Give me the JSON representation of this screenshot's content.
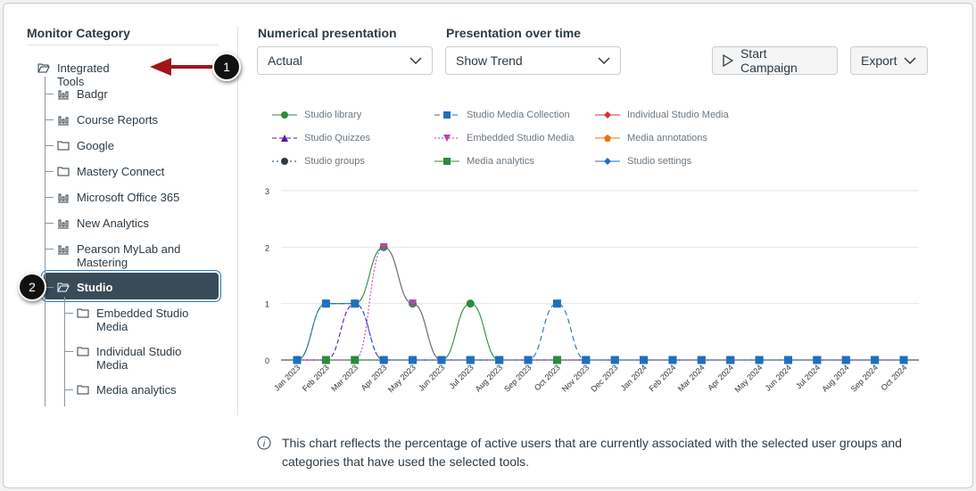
{
  "sidebar": {
    "title": "Monitor Category",
    "root": {
      "label": "Integrated Tools",
      "icon": "folder-open-icon"
    },
    "items": [
      {
        "label": "Badgr",
        "icon": "bar-chart-icon"
      },
      {
        "label": "Course Reports",
        "icon": "bar-chart-icon"
      },
      {
        "label": "Google",
        "icon": "folder-icon"
      },
      {
        "label": "Mastery Connect",
        "icon": "folder-icon"
      },
      {
        "label": "Microsoft Office 365",
        "icon": "bar-chart-icon"
      },
      {
        "label": "New Analytics",
        "icon": "bar-chart-icon"
      },
      {
        "label": "Pearson MyLab and Mastering",
        "icon": "bar-chart-icon"
      },
      {
        "label": "Studio",
        "icon": "folder-open-icon",
        "selected": true
      }
    ],
    "children": [
      {
        "label": "Embedded Studio Media",
        "icon": "folder-icon"
      },
      {
        "label": "Individual Studio Media",
        "icon": "folder-icon"
      },
      {
        "label": "Media analytics",
        "icon": "folder-icon"
      }
    ]
  },
  "annotations": {
    "one": "1",
    "two": "2",
    "arrow_color": "#a3131c"
  },
  "controls": {
    "numerical_label": "Numerical presentation",
    "numerical_value": "Actual",
    "time_label": "Presentation over time",
    "time_value": "Show Trend",
    "start_campaign": "Start Campaign",
    "export": "Export"
  },
  "info_text": "This chart reflects the percentage of active users that are currently associated with the selected user groups and categories that have used the selected tools.",
  "chart_data": {
    "type": "line",
    "ylim": [
      0,
      3
    ],
    "yticks": [
      0,
      1,
      2,
      3
    ],
    "grid": true,
    "legend_placement": "top",
    "categories": [
      "Jan 2023",
      "Feb 2023",
      "Mar 2023",
      "Apr 2023",
      "May 2023",
      "Jun 2023",
      "Jul 2023",
      "Aug 2023",
      "Sep 2023",
      "Oct 2023",
      "Nov 2023",
      "Dec 2023",
      "Jan 2024",
      "Feb 2024",
      "Mar 2024",
      "Apr 2024",
      "May 2024",
      "Jun 2024",
      "Jul 2024",
      "Aug 2024",
      "Sep 2024",
      "Oct 2024"
    ],
    "series": [
      {
        "name": "Studio library",
        "color": "#2e8b3e",
        "marker": "circle",
        "dash": "",
        "values": [
          0,
          1,
          1,
          2,
          1,
          0,
          1,
          0,
          0,
          0,
          0,
          0,
          0,
          0,
          0,
          0,
          0,
          0,
          0,
          0,
          0,
          0
        ]
      },
      {
        "name": "Studio Media Collection",
        "color": "#1f6fbf",
        "marker": "square",
        "dash": "6 4",
        "values": [
          0,
          1,
          1,
          0,
          0,
          0,
          0,
          0,
          0,
          1,
          0,
          0,
          0,
          0,
          0,
          0,
          0,
          0,
          0,
          0,
          0,
          0
        ]
      },
      {
        "name": "Individual Studio Media",
        "color": "#e0302f",
        "marker": "diamond",
        "dash": "",
        "values": [
          0,
          0,
          0,
          0,
          0,
          0,
          0,
          0,
          0,
          0,
          0,
          0,
          0,
          0,
          0,
          0,
          0,
          0,
          0,
          0,
          0,
          0
        ]
      },
      {
        "name": "Studio Quizzes",
        "color": "#5b16a8",
        "marker": "triangle",
        "dash": "5 3",
        "values": [
          0,
          0,
          1,
          0,
          0,
          0,
          0,
          0,
          0,
          0,
          0,
          0,
          0,
          0,
          0,
          0,
          0,
          0,
          0,
          0,
          0,
          0
        ]
      },
      {
        "name": "Embedded Studio Media",
        "color": "#c03cb8",
        "marker": "triangle-down",
        "dash": "2 2",
        "values": [
          0,
          0,
          0,
          2,
          1,
          0,
          0,
          0,
          0,
          0,
          0,
          0,
          0,
          0,
          0,
          0,
          0,
          0,
          0,
          0,
          0,
          0
        ]
      },
      {
        "name": "Media annotations",
        "color": "#f07010",
        "marker": "pentagon",
        "dash": "",
        "values": [
          0,
          0,
          0,
          0,
          0,
          0,
          0,
          0,
          0,
          0,
          0,
          0,
          0,
          0,
          0,
          0,
          0,
          0,
          0,
          0,
          0,
          0
        ]
      },
      {
        "name": "Studio groups",
        "color": "#2d3b45",
        "marker": "circle",
        "dash": "2 3",
        "values": [
          0,
          0,
          0,
          0,
          0,
          0,
          0,
          0,
          0,
          0,
          0,
          0,
          0,
          0,
          0,
          0,
          0,
          0,
          0,
          0,
          0,
          0
        ]
      },
      {
        "name": "Media analytics",
        "color": "#2e8b3e",
        "marker": "square",
        "dash": "",
        "values": [
          0,
          0,
          0,
          0,
          0,
          0,
          0,
          0,
          0,
          0,
          0,
          0,
          0,
          0,
          0,
          0,
          0,
          0,
          0,
          0,
          0,
          0
        ]
      },
      {
        "name": "Studio settings",
        "color": "#1f6fbf",
        "marker": "diamond",
        "dash": "",
        "values": [
          0,
          0,
          0,
          0,
          0,
          0,
          0,
          0,
          0,
          0,
          0,
          0,
          0,
          0,
          0,
          0,
          0,
          0,
          0,
          0,
          0,
          0
        ]
      }
    ]
  }
}
